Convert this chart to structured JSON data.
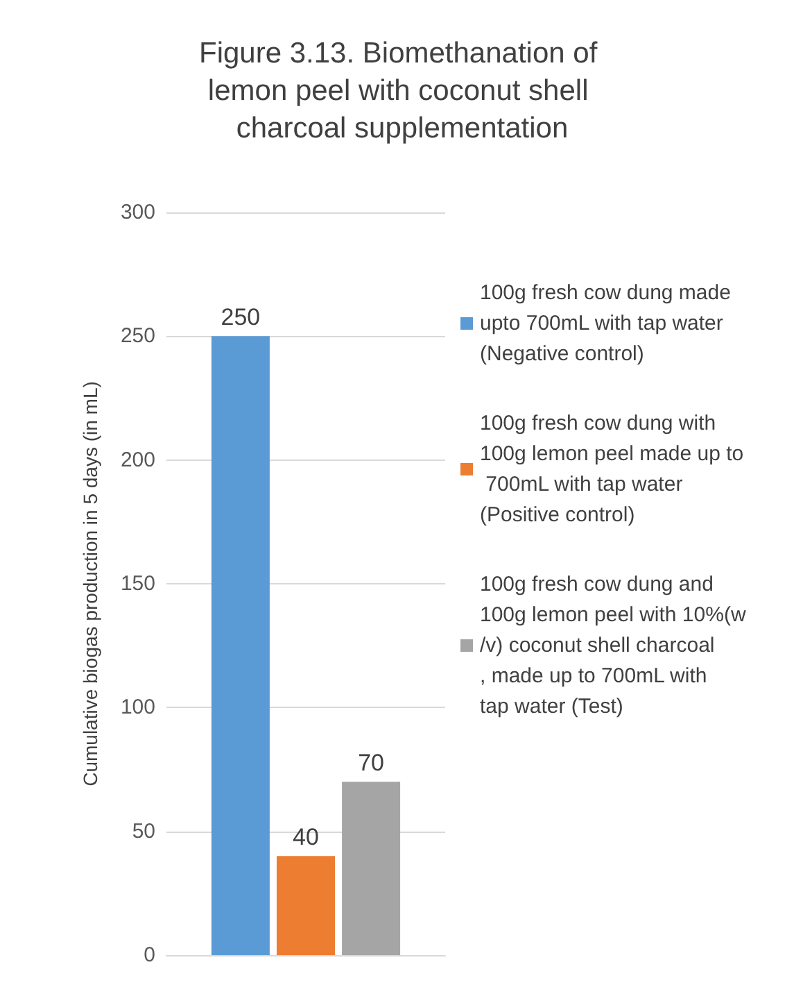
{
  "chart_data": {
    "type": "bar",
    "title": "Figure 3.13. Biomethanation of lemon peel with coconut shell charcoal supplementation",
    "ylabel": "Cumulative biogas production in 5 days (in mL)",
    "categories": [
      null
    ],
    "series": [
      {
        "name": "100g fresh cow dung made upto 700mL with tap water (Negative control)",
        "color": "#5b9bd5",
        "values": [
          250
        ]
      },
      {
        "name": "100g fresh cow dung with 100g lemon peel made up to 700mL with tap water (Positive control)",
        "color": "#ed7d31",
        "values": [
          40
        ]
      },
      {
        "name": "100g fresh cow dung and 100g lemon peel with 10%(w/v) coconut shell charcoal, made up to 700mL with tap water (Test)",
        "color": "#a5a5a5",
        "values": [
          70
        ]
      }
    ],
    "ylim": [
      0,
      300
    ],
    "yticks": [
      0,
      50,
      100,
      150,
      200,
      250,
      300
    ],
    "grid": "y",
    "legend": "right",
    "data_labels": true
  }
}
